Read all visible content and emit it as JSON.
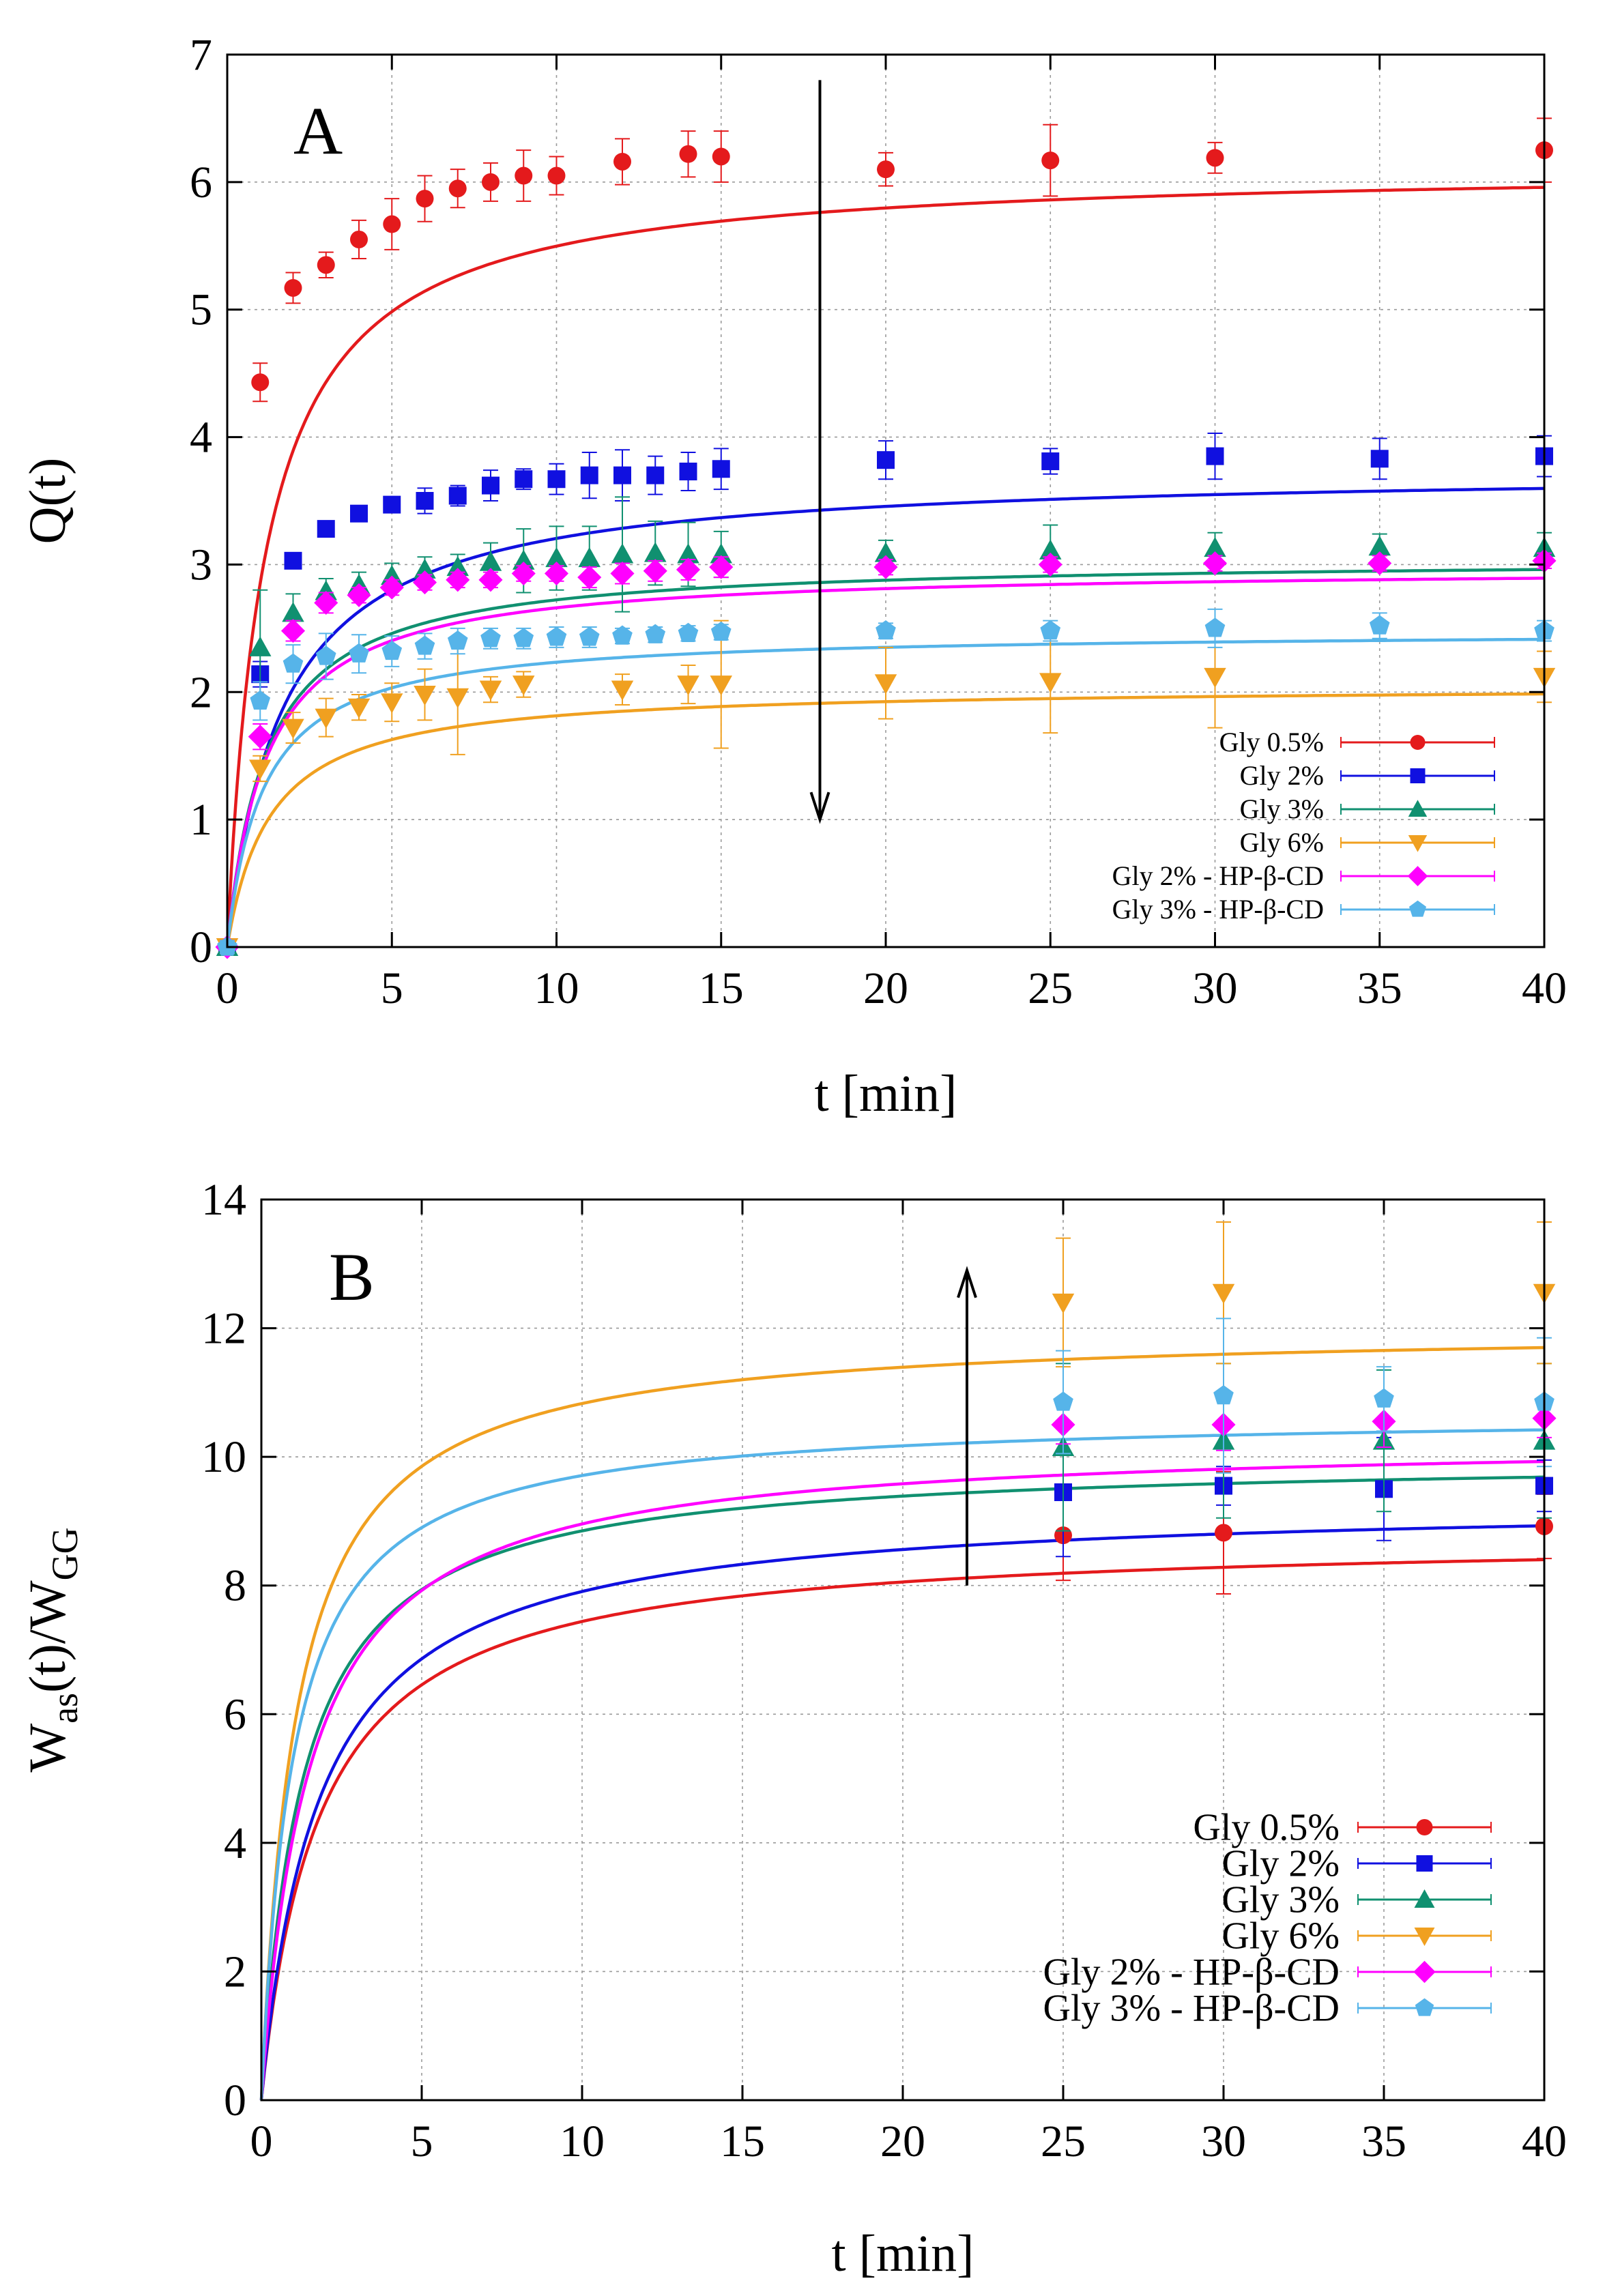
{
  "colors": {
    "gly05": "#e41a1c",
    "gly2": "#1010e0",
    "gly3": "#109070",
    "gly6": "#f0a020",
    "gly2hp": "#ff00ff",
    "gly3hp": "#56b4e9",
    "grid": "#9a9a9a"
  },
  "chart_data": [
    {
      "type": "scatter",
      "panel_label": "A",
      "xlabel": "t [min]",
      "ylabel": "Q(t)",
      "xlim": [
        0,
        40
      ],
      "ylim": [
        0,
        7
      ],
      "xticks": [
        0,
        5,
        10,
        15,
        20,
        25,
        30,
        35,
        40
      ],
      "yticks": [
        0,
        1,
        2,
        3,
        4,
        5,
        6,
        7
      ],
      "grid": true,
      "legend_position": "bottom-right",
      "arrow": {
        "direction": "down",
        "x": 18,
        "y_from": 6.8,
        "y_to": 1.0
      },
      "series": [
        {
          "name": "Gly 0.5%",
          "color_key": "gly05",
          "marker": "circle",
          "x": [
            0,
            1,
            2,
            3,
            4,
            5,
            6,
            7,
            8,
            9,
            10,
            12,
            14,
            15,
            20,
            25,
            30,
            40
          ],
          "y": [
            0,
            4.43,
            5.17,
            5.35,
            5.55,
            5.67,
            5.87,
            5.95,
            6.0,
            6.05,
            6.05,
            6.16,
            6.22,
            6.2,
            6.1,
            6.17,
            6.19,
            6.25
          ],
          "err": [
            0.05,
            0.15,
            0.12,
            0.1,
            0.15,
            0.2,
            0.18,
            0.15,
            0.15,
            0.2,
            0.15,
            0.18,
            0.18,
            0.2,
            0.13,
            0.28,
            0.12,
            0.25
          ],
          "fit": {
            "plateau": 6.13,
            "tau": 1.15
          }
        },
        {
          "name": "Gly 2%",
          "color_key": "gly2",
          "marker": "square",
          "x": [
            0,
            1,
            2,
            3,
            4,
            5,
            6,
            7,
            8,
            9,
            10,
            11,
            12,
            13,
            14,
            15,
            20,
            25,
            30,
            35,
            40
          ],
          "y": [
            0,
            2.14,
            3.03,
            3.28,
            3.4,
            3.47,
            3.5,
            3.54,
            3.62,
            3.67,
            3.67,
            3.7,
            3.7,
            3.7,
            3.73,
            3.75,
            3.82,
            3.81,
            3.85,
            3.83,
            3.85
          ],
          "err": [
            0.05,
            0.1,
            0.05,
            0.06,
            0.05,
            0.06,
            0.1,
            0.08,
            0.12,
            0.08,
            0.12,
            0.18,
            0.2,
            0.15,
            0.15,
            0.16,
            0.15,
            0.1,
            0.18,
            0.16,
            0.16
          ],
          "fit": {
            "plateau": 3.75,
            "tau": 1.7
          }
        },
        {
          "name": "Gly 3%",
          "color_key": "gly3",
          "marker": "triangle-up",
          "x": [
            0,
            1,
            2,
            3,
            4,
            5,
            6,
            7,
            8,
            9,
            10,
            11,
            12,
            13,
            14,
            15,
            20,
            25,
            30,
            35,
            40
          ],
          "y": [
            0,
            2.35,
            2.62,
            2.79,
            2.84,
            2.91,
            2.96,
            2.98,
            3.02,
            3.03,
            3.05,
            3.05,
            3.08,
            3.09,
            3.08,
            3.08,
            3.09,
            3.11,
            3.13,
            3.14,
            3.13
          ],
          "err": [
            0.05,
            0.45,
            0.15,
            0.1,
            0.1,
            0.1,
            0.1,
            0.1,
            0.15,
            0.25,
            0.25,
            0.25,
            0.45,
            0.25,
            0.25,
            0.18,
            0.1,
            0.2,
            0.12,
            0.1,
            0.12
          ],
          "fit": {
            "plateau": 3.05,
            "tau": 1.2
          }
        },
        {
          "name": "Gly 6%",
          "color_key": "gly6",
          "marker": "triangle-down",
          "x": [
            0,
            1,
            2,
            3,
            4,
            5,
            6,
            7,
            8,
            9,
            12,
            14,
            15,
            20,
            25,
            30,
            40
          ],
          "y": [
            0,
            1.4,
            1.72,
            1.8,
            1.88,
            1.92,
            1.98,
            1.96,
            2.02,
            2.06,
            2.02,
            2.06,
            2.06,
            2.07,
            2.08,
            2.12,
            2.12
          ],
          "err": [
            0.05,
            0.1,
            0.12,
            0.15,
            0.1,
            0.15,
            0.2,
            0.45,
            0.1,
            0.1,
            0.12,
            0.15,
            0.5,
            0.28,
            0.4,
            0.4,
            0.2
          ],
          "fit": {
            "plateau": 2.05,
            "tau": 1.3
          }
        },
        {
          "name": "Gly 2% - HP-β-CD",
          "color_key": "gly2hp",
          "marker": "diamond",
          "x": [
            0,
            1,
            2,
            3,
            4,
            5,
            6,
            7,
            8,
            9,
            10,
            11,
            12,
            13,
            14,
            15,
            20,
            25,
            30,
            35,
            40
          ],
          "y": [
            0,
            1.65,
            2.48,
            2.7,
            2.76,
            2.82,
            2.86,
            2.88,
            2.88,
            2.93,
            2.93,
            2.9,
            2.93,
            2.95,
            2.96,
            2.98,
            2.98,
            3.0,
            3.01,
            3.01,
            3.03
          ],
          "err": [
            0.05,
            0.1,
            0.08,
            0.08,
            0.06,
            0.06,
            0.06,
            0.06,
            0.06,
            0.06,
            0.06,
            0.08,
            0.08,
            0.08,
            0.08,
            0.08,
            0.06,
            0.06,
            0.06,
            0.06,
            0.06
          ],
          "fit": {
            "plateau": 2.98,
            "tau": 1.2
          }
        },
        {
          "name": "Gly 3% - HP-β-CD",
          "color_key": "gly3hp",
          "marker": "pentagon",
          "x": [
            0,
            1,
            2,
            3,
            4,
            5,
            6,
            7,
            8,
            9,
            10,
            11,
            12,
            13,
            14,
            15,
            20,
            25,
            30,
            35,
            40
          ],
          "y": [
            0,
            1.93,
            2.22,
            2.28,
            2.3,
            2.32,
            2.36,
            2.4,
            2.42,
            2.42,
            2.43,
            2.43,
            2.44,
            2.45,
            2.46,
            2.47,
            2.48,
            2.48,
            2.5,
            2.52,
            2.48
          ],
          "err": [
            0.05,
            0.15,
            0.15,
            0.18,
            0.15,
            0.12,
            0.1,
            0.1,
            0.08,
            0.08,
            0.08,
            0.08,
            0.06,
            0.06,
            0.06,
            0.06,
            0.06,
            0.08,
            0.15,
            0.1,
            0.08
          ],
          "fit": {
            "plateau": 2.48,
            "tau": 1.1
          }
        }
      ]
    },
    {
      "type": "scatter",
      "panel_label": "B",
      "xlabel": "t [min]",
      "ylabel_main": "W",
      "ylabel_sub1": "as",
      "ylabel_mid": "(t)/W",
      "ylabel_sub2": "GG",
      "xlim": [
        0,
        40
      ],
      "ylim": [
        0,
        14
      ],
      "xticks": [
        0,
        5,
        10,
        15,
        20,
        25,
        30,
        35,
        40
      ],
      "yticks": [
        0,
        2,
        4,
        6,
        8,
        10,
        12,
        14
      ],
      "grid": true,
      "legend_position": "bottom-right",
      "arrow": {
        "direction": "up",
        "x": 22,
        "y_from": 8.0,
        "y_to": 12.9
      },
      "series": [
        {
          "name": "Gly 0.5%",
          "color_key": "gly05",
          "marker": "circle",
          "x": [
            25,
            30,
            40
          ],
          "y": [
            8.78,
            8.82,
            8.92
          ],
          "err": [
            0.7,
            0.95,
            0.5
          ],
          "fit": {
            "plateau": 8.78,
            "tau": 1.8
          }
        },
        {
          "name": "Gly 2%",
          "color_key": "gly2",
          "marker": "square",
          "x": [
            25,
            30,
            35,
            40
          ],
          "y": [
            9.45,
            9.55,
            9.5,
            9.55
          ],
          "err": [
            1.0,
            0.3,
            0.8,
            0.4
          ],
          "fit": {
            "plateau": 9.33,
            "tau": 1.8
          }
        },
        {
          "name": "Gly 3%",
          "color_key": "gly3",
          "marker": "triangle-up",
          "x": [
            25,
            30,
            35,
            40
          ],
          "y": [
            10.15,
            10.25,
            10.25,
            10.25
          ],
          "err": [
            1.3,
            1.2,
            1.1,
            1.2
          ],
          "fit": {
            "plateau": 10.0,
            "tau": 1.3
          }
        },
        {
          "name": "Gly 6%",
          "color_key": "gly6",
          "marker": "triangle-down",
          "x": [
            25,
            30,
            40
          ],
          "y": [
            12.4,
            12.55,
            12.55
          ],
          "err": [
            1.0,
            1.1,
            1.1
          ],
          "fit": {
            "plateau": 12.02,
            "tau": 1.1
          }
        },
        {
          "name": "Gly 2% - HP-β-CD",
          "color_key": "gly2hp",
          "marker": "diamond",
          "x": [
            25,
            30,
            35,
            40
          ],
          "y": [
            10.5,
            10.5,
            10.55,
            10.6
          ],
          "err": [
            0.3,
            0.4,
            0.4,
            0.3
          ],
          "fit": {
            "plateau": 10.3,
            "tau": 1.5
          }
        },
        {
          "name": "Gly 3% - HP-β-CD",
          "color_key": "gly3hp",
          "marker": "pentagon",
          "x": [
            25,
            30,
            35,
            40
          ],
          "y": [
            10.85,
            10.95,
            10.9,
            10.85
          ],
          "err": [
            0.8,
            1.2,
            0.5,
            1.0
          ],
          "fit": {
            "plateau": 10.68,
            "tau": 1.0
          }
        }
      ]
    }
  ]
}
